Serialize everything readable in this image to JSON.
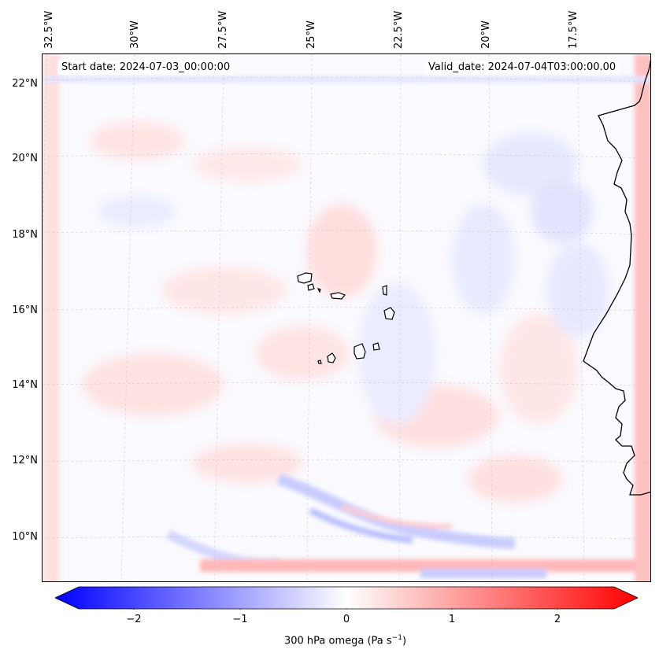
{
  "info": {
    "start_date": "Start date: 2024-07-03_00:00:00",
    "valid_date": "Valid_date: 2024-07-04T03:00:00.00"
  },
  "map": {
    "lat_labels": [
      "22°N",
      "20°N",
      "18°N",
      "16°N",
      "14°N",
      "12°N",
      "10°N"
    ],
    "lon_labels": [
      "32.5°W",
      "30°W",
      "27.5°W",
      "25°W",
      "22.5°W",
      "20°W",
      "17.5°W"
    ],
    "features": [
      "coastline-west-africa",
      "cape-verde-islands"
    ]
  },
  "colorbar": {
    "ticks": [
      "−2",
      "−1",
      "0",
      "1",
      "2"
    ],
    "label": "300 hPa omega (Pa s",
    "label_sup": "−1",
    "label_end": ")",
    "colors": {
      "min": "#0000ff",
      "mid": "#ffffff",
      "max": "#ff0000"
    },
    "range": [
      -2.6,
      2.6
    ]
  }
}
